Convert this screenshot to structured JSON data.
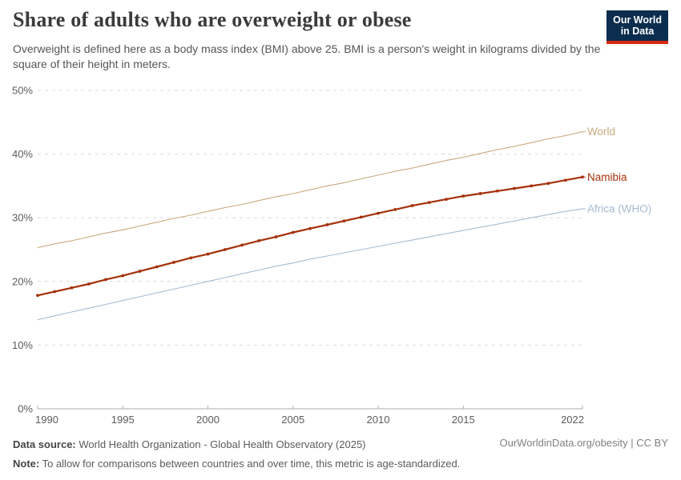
{
  "header": {
    "title": "Share of adults who are overweight or obese",
    "subtitle": "Overweight is defined here as a body mass index (BMI) above 25. BMI is a person's weight in kilograms divided by the square of their height in meters."
  },
  "logo": {
    "line1": "Our World",
    "line2": "in Data",
    "bg_color": "#0b2d4e",
    "accent_color": "#d7290f"
  },
  "footer": {
    "datasource_label": "Data source:",
    "datasource_text": " World Health Organization - Global Health Observatory (2025)",
    "note_label": "Note:",
    "note_text": " To allow for comparisons between countries and over time, this metric is age-standardized.",
    "credit": "OurWorldinData.org/obesity | CC BY"
  },
  "colors": {
    "grid": "#dcdcdc",
    "axis": "#adadad",
    "tick_text": "#5c5c5c"
  },
  "chart_data": {
    "type": "line",
    "title": "Share of adults who are overweight or obese",
    "xlabel": "",
    "ylabel": "",
    "xlim": [
      1990,
      2022
    ],
    "ylim": [
      0,
      50
    ],
    "grid": "dashed-horizontal",
    "legend_position": "right-end-labels",
    "x_ticks": [
      1990,
      1995,
      2000,
      2005,
      2010,
      2015,
      2022
    ],
    "y_ticks": [
      {
        "value": 0,
        "label": "0%"
      },
      {
        "value": 10,
        "label": "10%"
      },
      {
        "value": 20,
        "label": "20%"
      },
      {
        "value": 30,
        "label": "30%"
      },
      {
        "value": 40,
        "label": "40%"
      },
      {
        "value": 50,
        "label": "50%"
      }
    ],
    "x": [
      1990,
      1991,
      1992,
      1993,
      1994,
      1995,
      1996,
      1997,
      1998,
      1999,
      2000,
      2001,
      2002,
      2003,
      2004,
      2005,
      2006,
      2007,
      2008,
      2009,
      2010,
      2011,
      2012,
      2013,
      2014,
      2015,
      2016,
      2017,
      2018,
      2019,
      2020,
      2021,
      2022
    ],
    "series": [
      {
        "name": "World",
        "label": "World",
        "color": "#c9a87e",
        "markers": false,
        "line_width": 1.1,
        "values": [
          25.3,
          25.9,
          26.4,
          27.0,
          27.6,
          28.1,
          28.7,
          29.3,
          29.9,
          30.4,
          31.0,
          31.6,
          32.1,
          32.7,
          33.3,
          33.8,
          34.4,
          35.0,
          35.5,
          36.1,
          36.7,
          37.3,
          37.8,
          38.4,
          39.0,
          39.5,
          40.1,
          40.7,
          41.2,
          41.8,
          42.4,
          42.9,
          43.5
        ]
      },
      {
        "name": "Namibia",
        "label": "Namibia",
        "color": "#a5310b",
        "markers": true,
        "line_width": 2.2,
        "values": [
          17.8,
          18.4,
          19.0,
          19.6,
          20.3,
          20.9,
          21.6,
          22.3,
          23.0,
          23.7,
          24.3,
          25.0,
          25.7,
          26.4,
          27.0,
          27.7,
          28.3,
          28.9,
          29.5,
          30.1,
          30.7,
          31.3,
          31.9,
          32.4,
          32.9,
          33.4,
          33.8,
          34.2,
          34.6,
          35.0,
          35.4,
          35.9,
          36.4
        ]
      },
      {
        "name": "Africa (WHO)",
        "label": "Africa (WHO)",
        "color": "#a7bbd3",
        "markers": false,
        "line_width": 1.1,
        "values": [
          14.0,
          14.6,
          15.2,
          15.8,
          16.4,
          17.0,
          17.6,
          18.2,
          18.8,
          19.4,
          20.0,
          20.6,
          21.2,
          21.8,
          22.4,
          22.9,
          23.5,
          24.0,
          24.5,
          25.0,
          25.5,
          26.0,
          26.5,
          27.0,
          27.5,
          28.0,
          28.5,
          29.0,
          29.5,
          30.0,
          30.5,
          31.0,
          31.4
        ]
      }
    ]
  }
}
